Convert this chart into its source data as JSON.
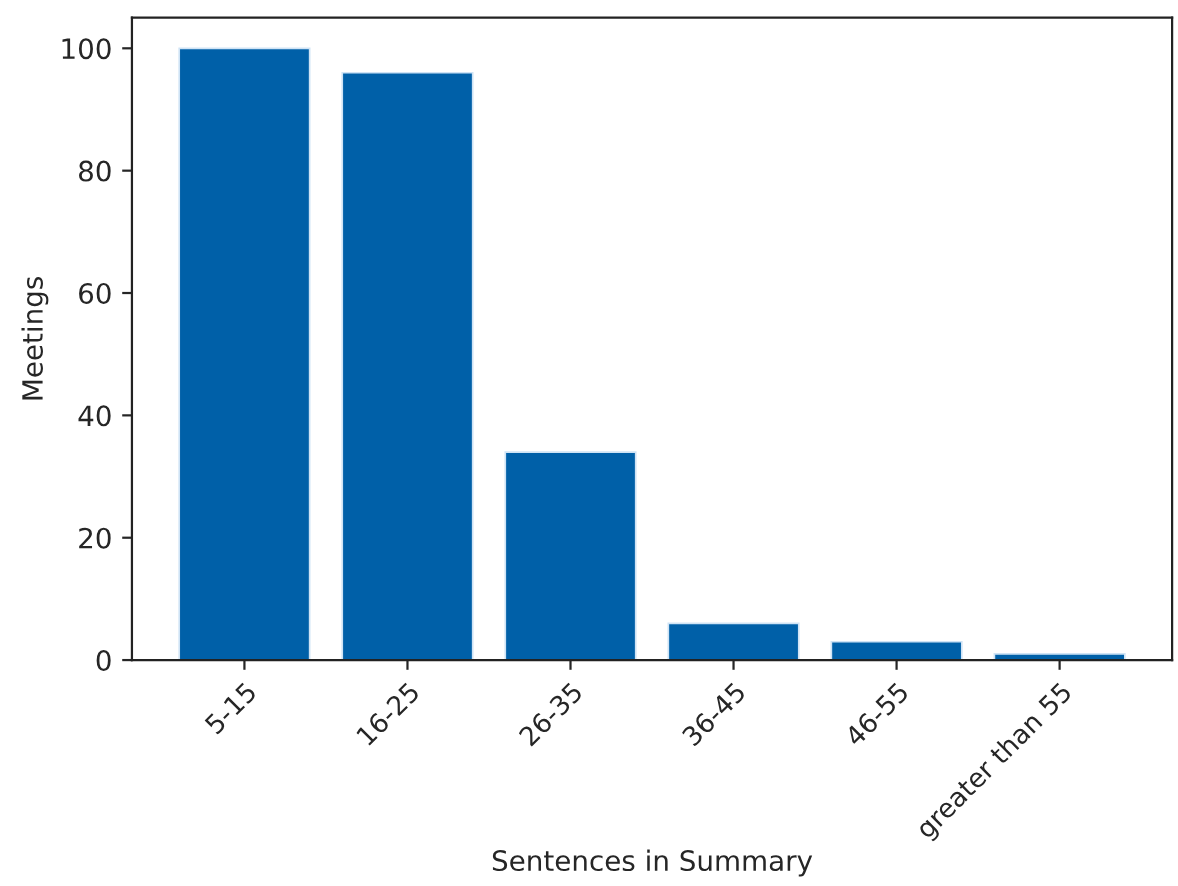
{
  "chart_data": {
    "type": "bar",
    "xlabel": "Sentences in Summary",
    "ylabel": "Meetings",
    "categories": [
      "5-15",
      "16-25",
      "26-35",
      "36-45",
      "46-55",
      "greater than 55"
    ],
    "values": [
      100,
      96,
      34,
      6,
      3,
      1
    ],
    "color": "#0060a8",
    "ylim": [
      0,
      105
    ],
    "yticks": [
      0,
      20,
      40,
      60,
      80,
      100
    ],
    "grid": false,
    "legend": false
  }
}
